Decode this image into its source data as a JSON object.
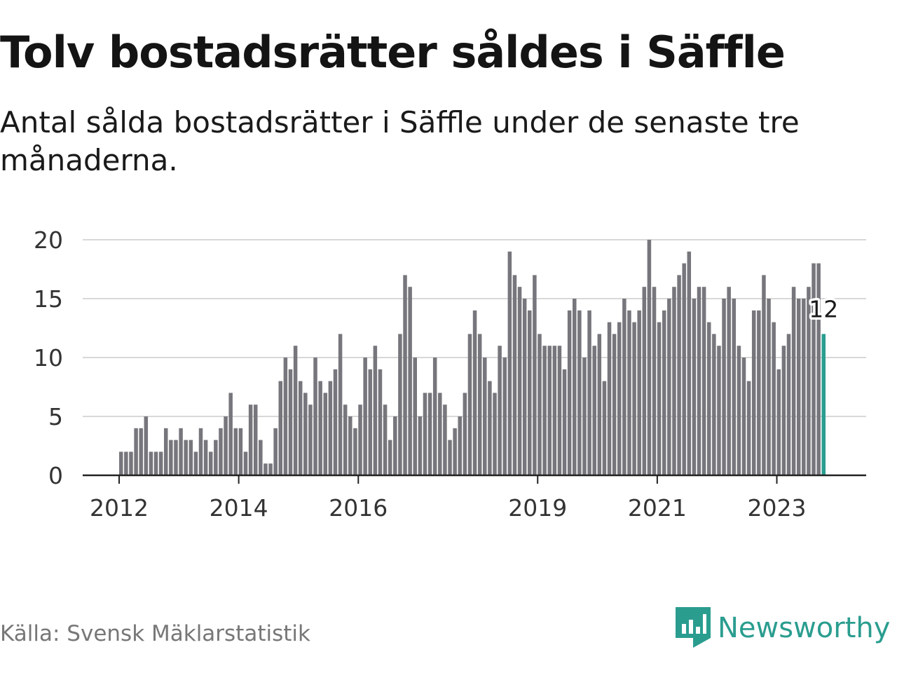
{
  "title": "Tolv bostadsrätter såldes i Säffle",
  "subtitle": "Antal sålda bostadsrätter i Säffle under de senaste tre månaderna.",
  "source": "Källa: Svensk Mäklarstatistik",
  "brand": {
    "name": "Newsworthy",
    "icon": "newsworthy-logo-icon"
  },
  "colors": {
    "bar": "#77767c",
    "highlight": "#2a9d8f",
    "grid": "#d8d8d8",
    "axis": "#222222",
    "text": "#333333"
  },
  "chart_data": {
    "type": "bar",
    "title": "Tolv bostadsrätter såldes i Säffle",
    "xlabel": "",
    "ylabel": "",
    "ylim": [
      0,
      20
    ],
    "yticks": [
      0,
      5,
      10,
      15,
      20
    ],
    "xticks": [
      "2012",
      "2014",
      "2016",
      "2019",
      "2021",
      "2023"
    ],
    "x_start": "2012-01",
    "grid": "horizontal",
    "values": [
      2,
      2,
      2,
      4,
      4,
      5,
      2,
      2,
      2,
      4,
      3,
      3,
      4,
      3,
      3,
      2,
      4,
      3,
      2,
      3,
      4,
      5,
      7,
      4,
      4,
      2,
      6,
      6,
      3,
      1,
      1,
      4,
      8,
      10,
      9,
      11,
      8,
      7,
      6,
      10,
      8,
      7,
      8,
      9,
      12,
      6,
      5,
      4,
      6,
      10,
      9,
      11,
      9,
      6,
      3,
      5,
      12,
      17,
      16,
      10,
      5,
      7,
      7,
      10,
      7,
      6,
      3,
      4,
      5,
      7,
      12,
      14,
      12,
      10,
      8,
      7,
      11,
      10,
      19,
      17,
      16,
      15,
      14,
      17,
      12,
      11,
      11,
      11,
      11,
      9,
      14,
      15,
      14,
      10,
      14,
      11,
      12,
      8,
      13,
      12,
      13,
      15,
      14,
      13,
      14,
      16,
      20,
      16,
      13,
      14,
      15,
      16,
      17,
      18,
      19,
      15,
      16,
      16,
      13,
      12,
      11,
      15,
      16,
      15,
      11,
      10,
      8,
      14,
      14,
      17,
      15,
      13,
      9,
      11,
      12,
      16,
      15,
      15,
      16,
      18,
      18,
      12
    ],
    "highlight_last": true,
    "annotation": {
      "label": "12",
      "value": 12
    }
  }
}
